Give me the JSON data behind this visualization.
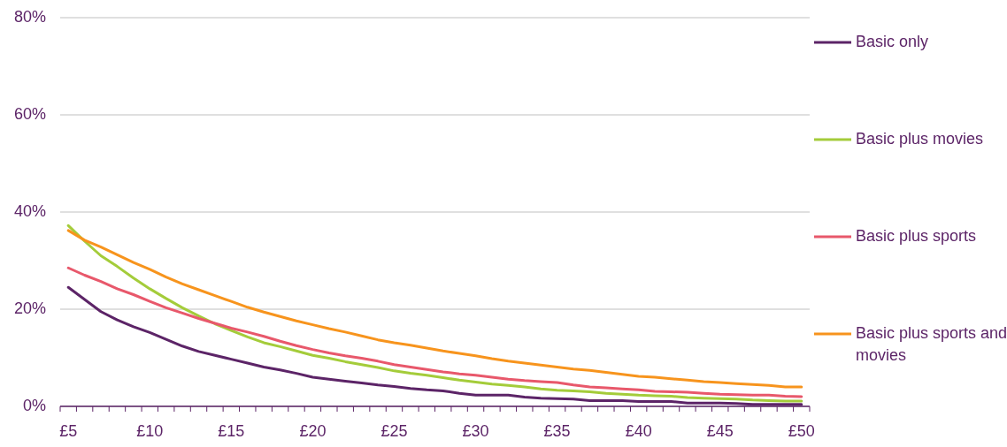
{
  "chart_data": {
    "type": "line",
    "categories": [
      "£5",
      null,
      null,
      null,
      null,
      "£10",
      null,
      null,
      null,
      null,
      "£15",
      null,
      null,
      null,
      null,
      "£20",
      null,
      null,
      null,
      null,
      "£25",
      null,
      null,
      null,
      null,
      "£30",
      null,
      null,
      null,
      null,
      "£35",
      null,
      null,
      null,
      null,
      "£40",
      null,
      null,
      null,
      null,
      "£45",
      null,
      null,
      null,
      null,
      "£50"
    ],
    "ylim": [
      0,
      80
    ],
    "yticks": [
      {
        "value": 0,
        "label": "0%"
      },
      {
        "value": 20,
        "label": "20%"
      },
      {
        "value": 40,
        "label": "40%"
      },
      {
        "value": 60,
        "label": "60%"
      },
      {
        "value": 80,
        "label": "80%"
      }
    ],
    "grid": "y",
    "legend": "right",
    "marker": "none",
    "line_style": "solid",
    "series": [
      {
        "name": "Basic only",
        "color": "#5c2467",
        "values": [
          24.5,
          22,
          19.5,
          17.8,
          16.4,
          15.2,
          13.8,
          12.4,
          11.3,
          10.5,
          9.7,
          8.9,
          8.1,
          7.5,
          6.8,
          6.0,
          5.6,
          5.2,
          4.8,
          4.4,
          4.1,
          3.7,
          3.4,
          3.2,
          2.7,
          2.3,
          2.3,
          2.3,
          1.9,
          1.7,
          1.6,
          1.5,
          1.2,
          1.2,
          1.2,
          1.0,
          1.0,
          1.0,
          0.7,
          0.7,
          0.7,
          0.6,
          0.4,
          0.4,
          0.4,
          0.4
        ]
      },
      {
        "name": "Basic plus movies",
        "color": "#a4cc3a",
        "values": [
          37.2,
          34,
          31,
          28.8,
          26.4,
          24.2,
          22.2,
          20.3,
          18.6,
          17,
          15.6,
          14.3,
          13.1,
          12.3,
          11.4,
          10.5,
          9.9,
          9.2,
          8.6,
          8.0,
          7.3,
          6.8,
          6.4,
          5.9,
          5.4,
          5.0,
          4.6,
          4.3,
          4.0,
          3.6,
          3.3,
          3.2,
          3.0,
          2.7,
          2.5,
          2.3,
          2.2,
          2.1,
          1.8,
          1.7,
          1.6,
          1.5,
          1.3,
          1.2,
          1.1,
          1.1
        ]
      },
      {
        "name": "Basic plus sports",
        "color": "#e8586b",
        "values": [
          28.5,
          27,
          25.7,
          24.2,
          23,
          21.6,
          20.3,
          19.2,
          18.1,
          17.1,
          16.1,
          15.3,
          14.4,
          13.4,
          12.5,
          11.7,
          11,
          10.4,
          9.9,
          9.3,
          8.6,
          8.1,
          7.6,
          7.1,
          6.7,
          6.4,
          6.0,
          5.6,
          5.3,
          5.1,
          4.9,
          4.4,
          4.0,
          3.8,
          3.6,
          3.4,
          3.1,
          3.0,
          2.9,
          2.7,
          2.5,
          2.4,
          2.3,
          2.3,
          2.1,
          2.0
        ]
      },
      {
        "name": "Basic plus sports and movies",
        "color": "#f7941d",
        "values": [
          36.2,
          34.2,
          32.8,
          31.2,
          29.6,
          28.2,
          26.6,
          25.2,
          24,
          22.8,
          21.6,
          20.4,
          19.4,
          18.5,
          17.6,
          16.8,
          16,
          15.3,
          14.5,
          13.7,
          13.1,
          12.6,
          12,
          11.4,
          10.9,
          10.4,
          9.8,
          9.3,
          8.9,
          8.5,
          8.1,
          7.7,
          7.4,
          7.0,
          6.6,
          6.2,
          6.0,
          5.7,
          5.4,
          5.1,
          4.9,
          4.7,
          4.5,
          4.3,
          4.0,
          4.0
        ]
      }
    ]
  }
}
